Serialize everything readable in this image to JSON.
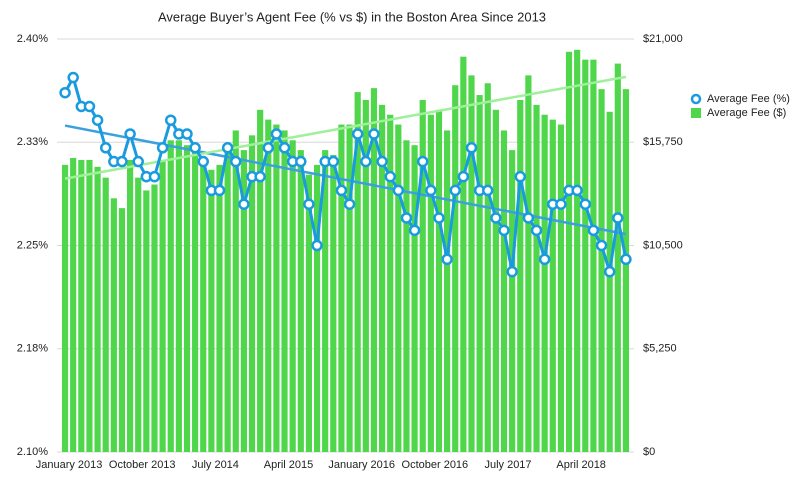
{
  "chart_data": {
    "type": "bar_line",
    "title": "Average Buyer’s Agent Fee (% vs $) in the Boston Area Since 2013",
    "categories": [
      "January 2013",
      null,
      null,
      null,
      null,
      null,
      null,
      null,
      null,
      "October 2013",
      null,
      null,
      null,
      null,
      null,
      null,
      null,
      null,
      "July 2014",
      null,
      null,
      null,
      null,
      null,
      null,
      null,
      null,
      "April 2015",
      null,
      null,
      null,
      null,
      null,
      null,
      null,
      null,
      "January 2016",
      null,
      null,
      null,
      null,
      null,
      null,
      null,
      null,
      "October 2016",
      null,
      null,
      null,
      null,
      null,
      null,
      null,
      null,
      "July 2017",
      null,
      null,
      null,
      null,
      null,
      null,
      null,
      null,
      "April 2018",
      null,
      null,
      null,
      null,
      null,
      null
    ],
    "series": [
      {
        "name": "Average Fee (%)",
        "color": "#1a9be0",
        "axis": "y",
        "values": [
          2.361,
          2.372,
          2.351,
          2.351,
          2.341,
          2.321,
          2.311,
          2.311,
          2.331,
          2.311,
          2.3,
          2.3,
          2.321,
          2.341,
          2.331,
          2.331,
          2.321,
          2.311,
          2.29,
          2.29,
          2.321,
          2.311,
          2.28,
          2.3,
          2.3,
          2.321,
          2.331,
          2.321,
          2.311,
          2.311,
          2.28,
          2.25,
          2.311,
          2.311,
          2.29,
          2.28,
          2.331,
          2.311,
          2.331,
          2.311,
          2.3,
          2.29,
          2.27,
          2.261,
          2.311,
          2.29,
          2.27,
          2.24,
          2.29,
          2.3,
          2.321,
          2.29,
          2.29,
          2.27,
          2.261,
          2.231,
          2.3,
          2.27,
          2.261,
          2.24,
          2.28,
          2.28,
          2.29,
          2.29,
          2.28,
          2.261,
          2.25,
          2.231,
          2.27,
          2.24
        ]
      },
      {
        "name": "Average Fee ($)",
        "color": "#4fd64a",
        "axis": "y2",
        "values": [
          14600,
          14950,
          14850,
          14850,
          14500,
          13950,
          12900,
          12400,
          14850,
          13950,
          13300,
          13600,
          14850,
          15850,
          15850,
          15600,
          15350,
          14600,
          14350,
          14600,
          15350,
          16350,
          15350,
          16100,
          17400,
          16900,
          16650,
          16350,
          15850,
          15350,
          14100,
          14600,
          15350,
          15100,
          16650,
          16650,
          18300,
          17900,
          18500,
          17650,
          17150,
          16650,
          15850,
          15600,
          17900,
          17150,
          17400,
          16350,
          18650,
          20100,
          19150,
          18150,
          18750,
          17400,
          16350,
          15350,
          17900,
          19150,
          17650,
          17150,
          16900,
          16650,
          20350,
          20450,
          19950,
          19950,
          18450,
          17300,
          19750,
          18450
        ]
      }
    ],
    "ylim": [
      2.1,
      2.4
    ],
    "yticks": [
      {
        "value": 2.1,
        "label": "2.10%"
      },
      {
        "value": 2.175,
        "label": "2.18%"
      },
      {
        "value": 2.25,
        "label": "2.25%"
      },
      {
        "value": 2.325,
        "label": "2.33%"
      },
      {
        "value": 2.4,
        "label": "2.40%"
      }
    ],
    "y2lim": [
      0,
      21000
    ],
    "y2ticks": [
      {
        "value": 0,
        "label": "$0"
      },
      {
        "value": 5250,
        "label": "$5,250"
      },
      {
        "value": 10500,
        "label": "$10,500"
      },
      {
        "value": 15750,
        "label": "$15,750"
      },
      {
        "value": 21000,
        "label": "$21,000"
      }
    ],
    "grid": true,
    "trendline": true,
    "legend": "right"
  }
}
